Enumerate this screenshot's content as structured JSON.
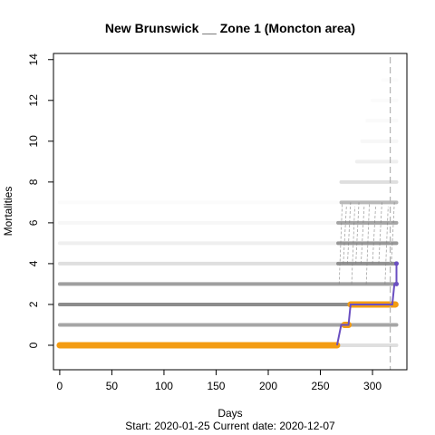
{
  "chart_data": {
    "type": "scatter",
    "title": "New Brunswick __ Zone 1 (Moncton area)",
    "xlabel": "Days",
    "ylabel": "Mortalities",
    "subtitle": "Start:  2020-01-25   Current date:  2020-12-07",
    "xlim": [
      -6,
      333
    ],
    "ylim": [
      -1.2,
      14.3
    ],
    "x_ticks": [
      0,
      50,
      100,
      150,
      200,
      250,
      300
    ],
    "y_ticks": [
      0,
      2,
      4,
      6,
      8,
      10,
      12,
      14
    ],
    "current_day": 317,
    "last_day": 323,
    "grid": false,
    "legend": "none",
    "colors": {
      "observed": "#f39c12",
      "projection": "#7f7f7f",
      "trend_line": "#6a4fc1",
      "current_date_line": "#b3b3b3"
    },
    "observed_series": [
      {
        "x_start": 0,
        "x_end": 266,
        "y": 0
      },
      {
        "x_start": 273,
        "x_end": 277,
        "y": 1
      },
      {
        "x_start": 279,
        "x_end": 322,
        "y": 2
      },
      {
        "x_start": 323,
        "x_end": 323,
        "y": 3
      },
      {
        "x_start": 323,
        "x_end": 323,
        "y": 4
      }
    ],
    "trend_line_points": [
      [
        266,
        0
      ],
      [
        270,
        1
      ],
      [
        277,
        1
      ],
      [
        279,
        2
      ],
      [
        319,
        2
      ],
      [
        321,
        3
      ],
      [
        323,
        3
      ],
      [
        323,
        4
      ]
    ],
    "projection_bands": [
      {
        "y": 0,
        "x_start": 0,
        "x_end": 323,
        "opacity": 0.25
      },
      {
        "y": 1,
        "x_start": 0,
        "x_end": 323,
        "opacity": 0.7
      },
      {
        "y": 2,
        "x_start": 0,
        "x_end": 323,
        "opacity": 0.9
      },
      {
        "y": 3,
        "x_start": 0,
        "x_end": 323,
        "opacity": 0.75
      },
      {
        "y": 4,
        "x_start": 0,
        "x_end": 266,
        "opacity": 0.25
      },
      {
        "y": 4,
        "x_start": 267,
        "x_end": 323,
        "opacity": 0.85
      },
      {
        "y": 5,
        "x_start": 0,
        "x_end": 266,
        "opacity": 0.12
      },
      {
        "y": 5,
        "x_start": 267,
        "x_end": 323,
        "opacity": 0.8
      },
      {
        "y": 6,
        "x_start": 0,
        "x_end": 266,
        "opacity": 0.06
      },
      {
        "y": 6,
        "x_start": 267,
        "x_end": 323,
        "opacity": 0.7
      },
      {
        "y": 7,
        "x_start": 0,
        "x_end": 266,
        "opacity": 0.03
      },
      {
        "y": 7,
        "x_start": 270,
        "x_end": 323,
        "opacity": 0.55
      },
      {
        "y": 8,
        "x_start": 270,
        "x_end": 323,
        "opacity": 0.25
      },
      {
        "y": 9,
        "x_start": 285,
        "x_end": 323,
        "opacity": 0.12
      },
      {
        "y": 10,
        "x_start": 290,
        "x_end": 323,
        "opacity": 0.06
      },
      {
        "y": 11,
        "x_start": 295,
        "x_end": 323,
        "opacity": 0.04
      },
      {
        "y": 12,
        "x_start": 300,
        "x_end": 323,
        "opacity": 0.03
      },
      {
        "y": 13,
        "x_start": 310,
        "x_end": 323,
        "opacity": 0.02
      }
    ]
  }
}
